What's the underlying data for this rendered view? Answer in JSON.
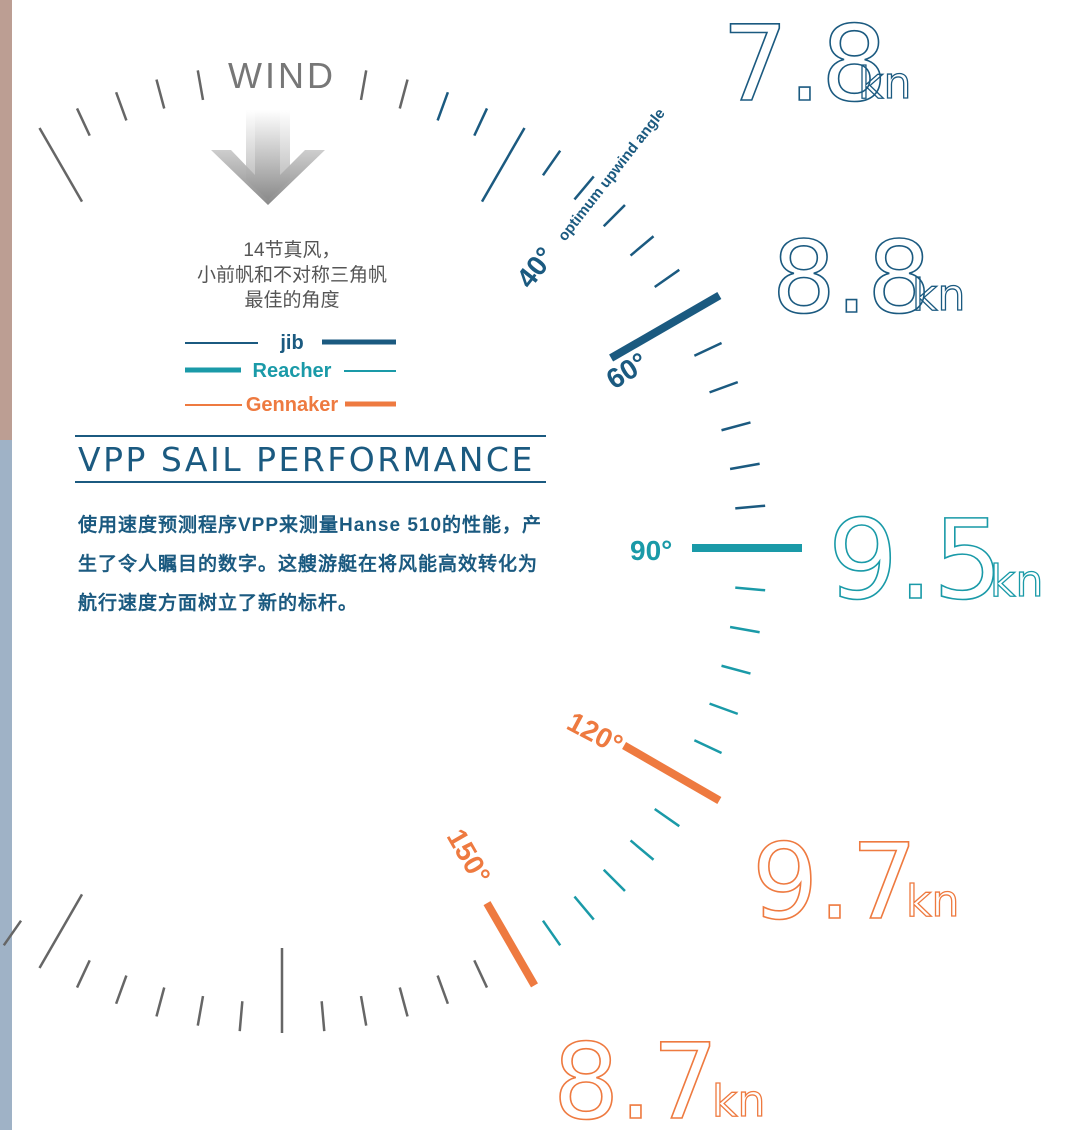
{
  "wind_label": "WIND",
  "caption": [
    "14节真风，",
    "小前帆和不对称三角帆",
    "最佳的角度"
  ],
  "legend": [
    {
      "label": "jib"
    },
    {
      "label": "Reacher"
    },
    {
      "label": "Gennaker"
    }
  ],
  "title": "VPP SAIL PERFORMANCE",
  "body": "使用速度预测程序VPP来测量Hanse 510的性能，产生了令人瞩目的数字。这艘游艇在将风能高效转化为航行速度方面树立了新的标杆。",
  "unit": "kn",
  "angles": [
    {
      "angle": "40°",
      "note": "optimum upwind angle",
      "speed": "7.8"
    },
    {
      "angle": "60°",
      "speed": "8.8"
    },
    {
      "angle": "90°",
      "speed": "9.5"
    },
    {
      "angle": "120°",
      "speed": "9.7"
    },
    {
      "angle": "150°",
      "speed": "8.7"
    }
  ]
}
